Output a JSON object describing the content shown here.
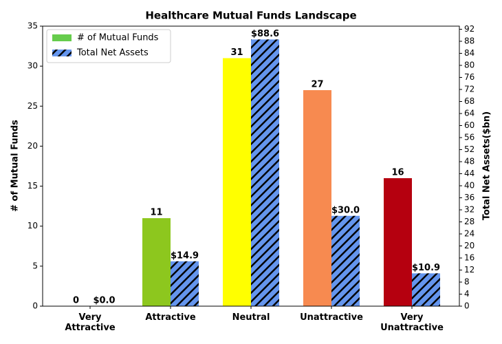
{
  "chart_data": {
    "type": "bar",
    "title": "Healthcare Mutual Funds Landscape",
    "categories": [
      "Very\nAttractive",
      "Attractive",
      "Neutral",
      "Unattractive",
      "Very\nUnattractive"
    ],
    "series": [
      {
        "name": "# of Mutual Funds",
        "color": "#66cc4c",
        "colors": [
          "#2e8b3a",
          "#8dc71e",
          "#ffff00",
          "#f78a50",
          "#b5000f"
        ],
        "values": [
          0,
          11,
          31,
          27,
          16
        ]
      },
      {
        "name": "Total Net Assets",
        "color": "#6495ed",
        "axis": "y2",
        "hatch": true,
        "values": [
          0.0,
          14.9,
          88.6,
          30.0,
          10.9
        ],
        "value_labels": [
          "$0.0",
          "$14.9",
          "$88.6",
          "$30.0",
          "$10.9"
        ]
      }
    ],
    "ylabel": "# of Mutual Funds",
    "y2label": "Total Net Assets($bn)",
    "ylim": [
      0,
      35
    ],
    "yticks": [
      0,
      5,
      10,
      15,
      20,
      25,
      30,
      35
    ],
    "y2lim": [
      0,
      93.03
    ],
    "y2ticks": [
      0,
      4,
      8,
      12,
      16,
      20,
      24,
      28,
      32,
      36,
      40,
      44,
      48,
      52,
      56,
      60,
      64,
      68,
      72,
      76,
      80,
      84,
      88,
      92
    ],
    "legend": "upper left"
  }
}
